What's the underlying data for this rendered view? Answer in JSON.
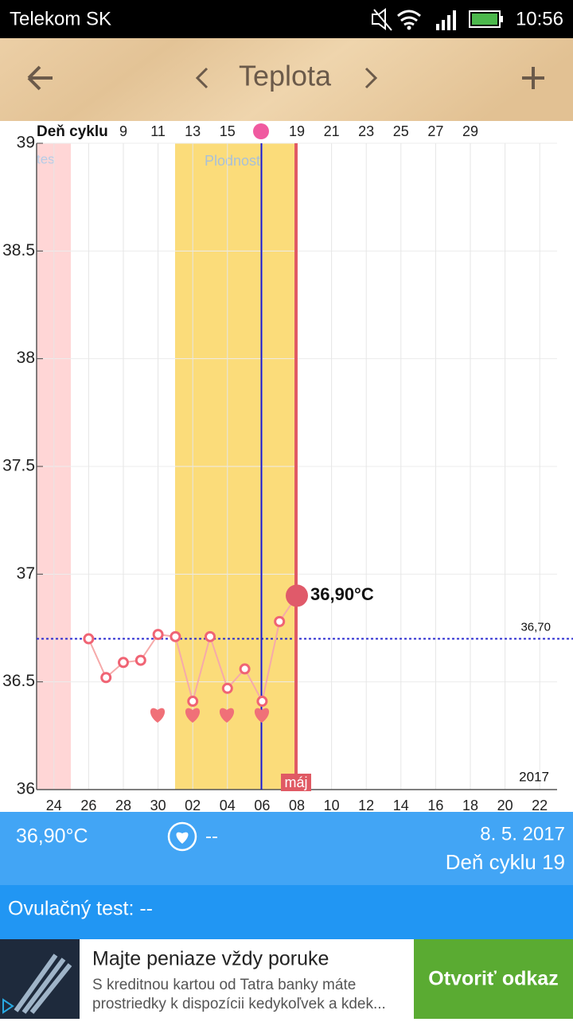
{
  "status_bar": {
    "carrier": "Telekom SK",
    "time": "10:56"
  },
  "header": {
    "title": "Teplota"
  },
  "chart_data": {
    "type": "line",
    "top_axis_label": "Deň cyklu",
    "top_categories": [
      null,
      null,
      null,
      null,
      null,
      "9",
      null,
      "11",
      null,
      "13",
      null,
      "15",
      null,
      null,
      null,
      "19",
      null,
      "21",
      null,
      "23",
      null,
      "25",
      null,
      "27",
      null,
      "29",
      null,
      null,
      null,
      null,
      null
    ],
    "categories": [
      null,
      "24",
      null,
      "26",
      null,
      "28",
      null,
      "30",
      null,
      "02",
      null,
      "04",
      null,
      "06",
      null,
      "08",
      null,
      "10",
      null,
      "12",
      null,
      "14",
      null,
      "16",
      null,
      "18",
      null,
      "20",
      null,
      "22",
      null
    ],
    "values": [
      null,
      null,
      null,
      36.7,
      36.52,
      36.59,
      36.6,
      36.72,
      36.71,
      36.41,
      36.71,
      36.47,
      36.56,
      36.41,
      36.78,
      36.9,
      null,
      null,
      null,
      null,
      null,
      null,
      null,
      null,
      null,
      null,
      null,
      null,
      null,
      null,
      null
    ],
    "value_labels": [
      null,
      null,
      null,
      null,
      null,
      null,
      null,
      null,
      null,
      null,
      null,
      null,
      null,
      null,
      null,
      "36,90°C",
      null,
      null,
      null,
      null,
      null,
      null,
      null,
      null,
      null,
      null,
      null,
      null,
      null,
      null,
      null
    ],
    "color": "#f06474",
    "line_color": "#f6aaaa",
    "ylim": [
      36,
      39
    ],
    "yticks": [
      36,
      36.5,
      37,
      37.5,
      38,
      38.5,
      39
    ],
    "grid": true,
    "reference_line": {
      "value": 36.7,
      "label": "36,70"
    },
    "annotations": {
      "period": "tes",
      "fertile": "Plodnosť",
      "month": "máj",
      "year": "2017"
    }
  },
  "summary": {
    "temperature": "36,90°C",
    "intercourse": "--",
    "date": "8. 5. 2017",
    "cycle_day": "Deň cyklu 19"
  },
  "ovulation_test": "Ovulačný test: --",
  "ad": {
    "title": "Majte peniaze vždy poruke",
    "text_1": "S kreditnou kartou od Tatra banky máte",
    "text_2": "prostriedky k dispozícii kedykoľvek a kdek...",
    "button": "Otvoriť odkaz"
  }
}
